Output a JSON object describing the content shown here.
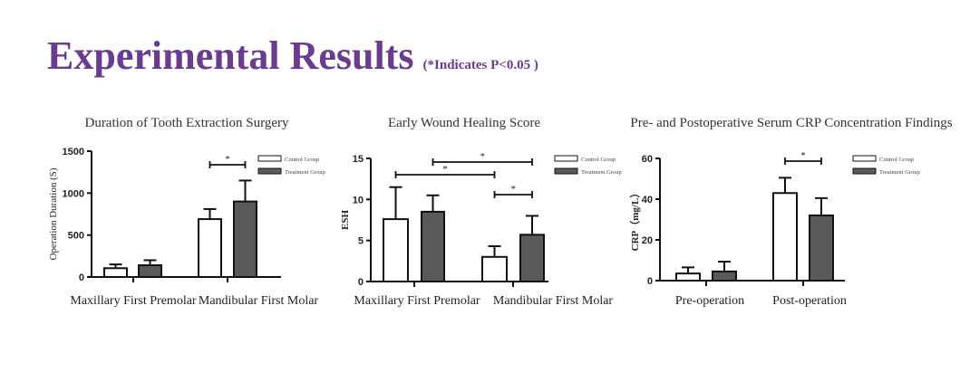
{
  "header": {
    "title": "Experimental Results",
    "note": "(*Indicates P<0.05 )"
  },
  "colors": {
    "title": "#6b3b8f",
    "control": "#ffffff",
    "treatment": "#5a5a5a",
    "axis": "#111111"
  },
  "chart_data": [
    {
      "type": "bar",
      "title": "Duration of Tooth Extraction Surgery",
      "ylabel": "Operation Duration  (S)",
      "ylim": [
        0,
        1500
      ],
      "yticks": [
        0,
        500,
        1000,
        1500
      ],
      "categories": [
        "Maxillary First Premolar",
        "Mandibular First Molar"
      ],
      "series": [
        {
          "name": "Control Group",
          "values": [
            105,
            690
          ],
          "errors": [
            45,
            120
          ]
        },
        {
          "name": "Treatment Group",
          "values": [
            140,
            900
          ],
          "errors": [
            60,
            250
          ]
        }
      ],
      "significance": [
        {
          "from": "Mandibular First Molar/Control Group",
          "to": "Mandibular First Molar/Treatment Group",
          "label": "*"
        }
      ],
      "legend": "top-right"
    },
    {
      "type": "bar",
      "title": "Early Wound Healing Score",
      "ylabel": "ESH",
      "ylim": [
        0,
        15
      ],
      "yticks": [
        0,
        5,
        10,
        15
      ],
      "categories": [
        "Maxillary First Premolar",
        "Mandibular First Molar"
      ],
      "series": [
        {
          "name": "Control Group",
          "values": [
            7.6,
            3.0
          ],
          "errors": [
            3.9,
            1.3
          ]
        },
        {
          "name": "Treatment Group",
          "values": [
            8.5,
            5.7
          ],
          "errors": [
            2.0,
            2.3
          ]
        }
      ],
      "significance": [
        {
          "from": "Maxillary First Premolar/Treatment Group",
          "to": "Mandibular First Molar/Treatment Group",
          "label": "*"
        },
        {
          "from": "Maxillary First Premolar/Control Group",
          "to": "Mandibular First Molar/Control Group",
          "label": "*"
        },
        {
          "from": "Mandibular First Molar/Control Group",
          "to": "Mandibular First Molar/Treatment Group",
          "label": "*"
        }
      ],
      "legend": "top-right"
    },
    {
      "type": "bar",
      "title": "Pre- and Postoperative Serum CRP Concentration Findings",
      "ylabel": "CRP（mg/L）",
      "ylim": [
        0,
        60
      ],
      "yticks": [
        0,
        20,
        40,
        60
      ],
      "categories": [
        "Pre-operation",
        "Post-operation"
      ],
      "series": [
        {
          "name": "Control Group",
          "values": [
            3.5,
            43
          ],
          "errors": [
            3,
            7.5
          ]
        },
        {
          "name": "Treatment Group",
          "values": [
            4.5,
            32
          ],
          "errors": [
            4.8,
            8.5
          ]
        }
      ],
      "significance": [
        {
          "from": "Post-operation/Control Group",
          "to": "Post-operation/Treatment Group",
          "label": "*"
        }
      ],
      "legend": "top-right"
    }
  ]
}
